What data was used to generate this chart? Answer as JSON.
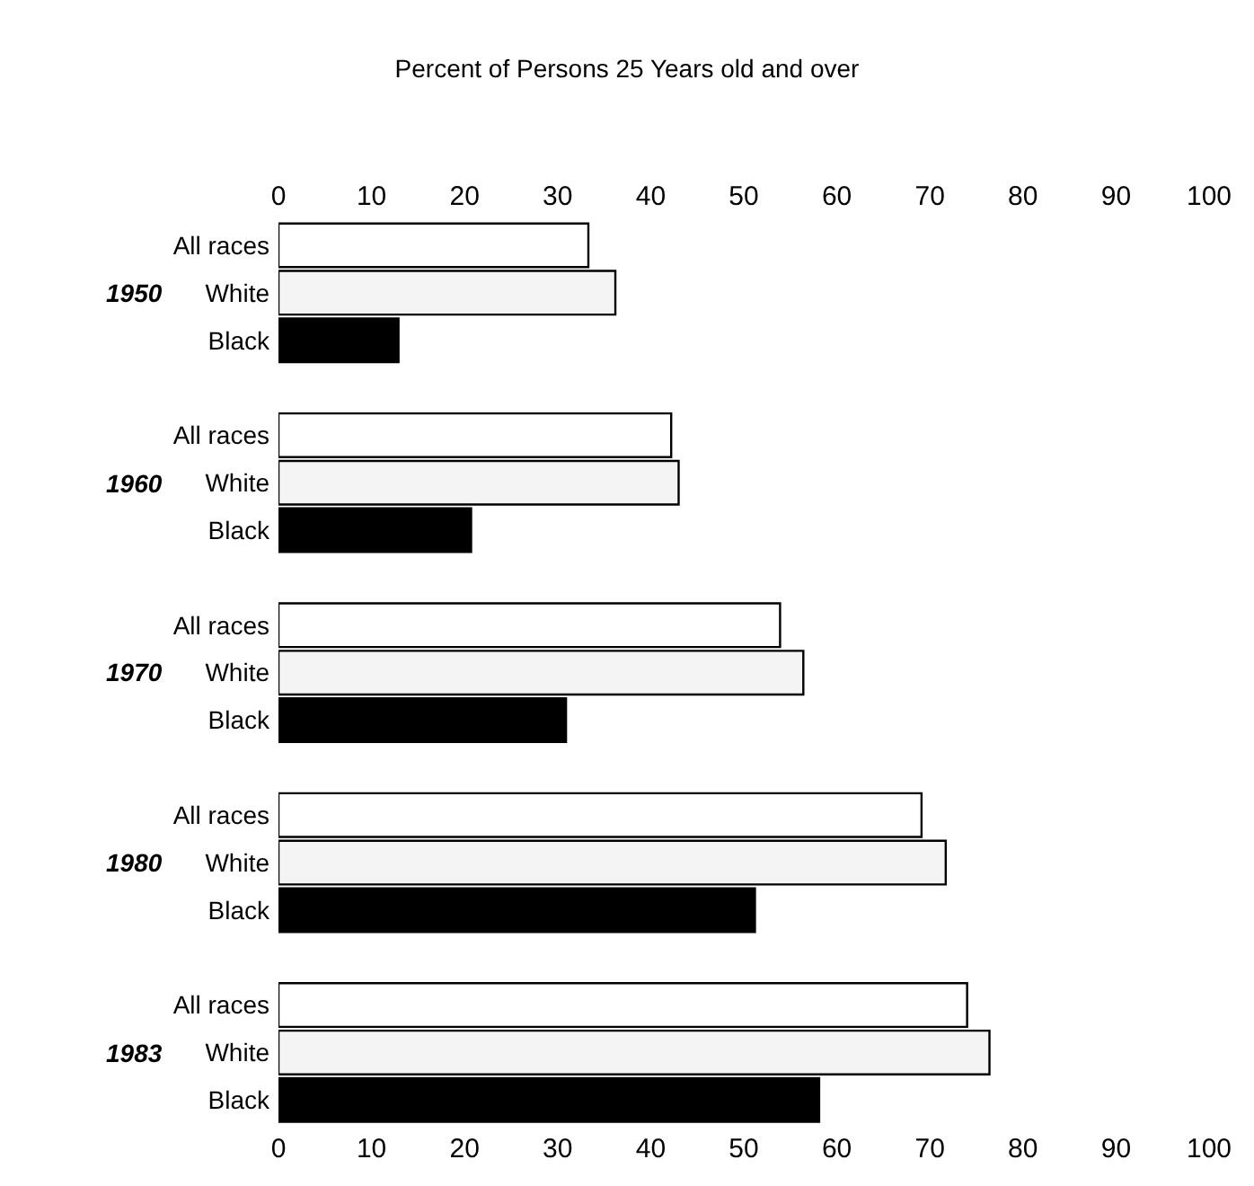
{
  "chart_data": {
    "type": "bar",
    "orientation": "horizontal",
    "title": "Percent of Persons 25 Years old and over",
    "categories": [
      "1950",
      "1960",
      "1970",
      "1980",
      "1983"
    ],
    "series": [
      {
        "name": "All races",
        "color": "#ffffff",
        "values": [
          33.3,
          42.2,
          53.9,
          69.1,
          74.0
        ]
      },
      {
        "name": "White",
        "color": "#f4f4f4",
        "values": [
          36.2,
          43.0,
          56.4,
          71.7,
          76.4
        ]
      },
      {
        "name": "Black",
        "color": "#000000",
        "values": [
          12.9,
          20.7,
          30.9,
          51.2,
          58.1
        ]
      }
    ],
    "xlim": [
      0,
      100
    ],
    "xticks": [
      0,
      10,
      20,
      30,
      40,
      50,
      60,
      70,
      80,
      90,
      100
    ],
    "x2lim": [
      0,
      100
    ],
    "x2ticks": [
      0,
      10,
      20,
      30,
      40,
      50,
      60,
      70,
      80,
      90,
      100
    ],
    "legend": false
  }
}
